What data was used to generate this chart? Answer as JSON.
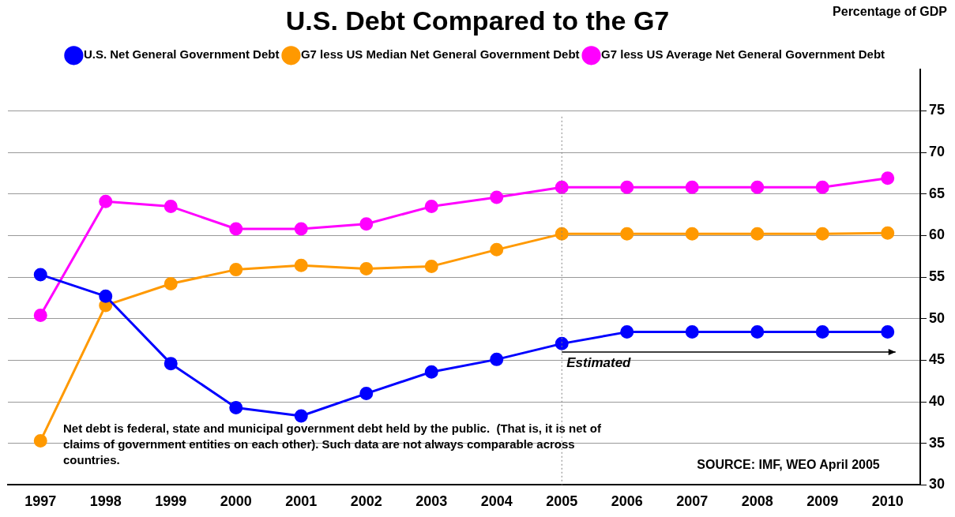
{
  "chart_data": {
    "type": "line",
    "title": "U.S. Debt Compared to the G7",
    "ylabel": "Percentage of GDP",
    "categories": [
      "1997",
      "1998",
      "1999",
      "2000",
      "2001",
      "2002",
      "2003",
      "2004",
      "2005",
      "2006",
      "2007",
      "2008",
      "2009",
      "2010"
    ],
    "series": [
      {
        "name": "U.S. Net General Government Debt",
        "color": "#0000ff",
        "values": [
          55.3,
          52.7,
          44.6,
          39.3,
          38.3,
          41.0,
          43.6,
          45.1,
          47.0,
          48.4,
          48.4,
          48.4,
          48.4,
          48.4
        ]
      },
      {
        "name": "G7 less US Median Net General Government Debt",
        "color": "#ff9900",
        "values": [
          35.3,
          51.6,
          54.2,
          55.9,
          56.4,
          56.0,
          56.3,
          58.3,
          60.2,
          60.2,
          60.2,
          60.2,
          60.2,
          60.3
        ]
      },
      {
        "name": "G7 less US Average Net General Government Debt",
        "color": "#ff00ff",
        "values": [
          50.4,
          64.1,
          63.5,
          60.8,
          60.8,
          61.4,
          63.5,
          64.6,
          65.8,
          65.8,
          65.8,
          65.8,
          65.8,
          66.9
        ]
      }
    ],
    "ylim": [
      30,
      80
    ],
    "yticks": [
      30,
      35,
      40,
      45,
      50,
      55,
      60,
      65,
      70,
      75
    ],
    "grid": "y",
    "legend": "top",
    "marker": "circle",
    "line_style": "solid",
    "ref_lines": [
      {
        "axis": "x",
        "value": "2005",
        "label": null,
        "color": "#808080",
        "line_style": "dotted"
      }
    ],
    "annotations": [
      {
        "text": "Estimated",
        "x": "2005",
        "y": 46
      },
      "Net debt is federal, state and municipal government debt held by the public.  (That is, it is net of claims of government entities on each other). Such data are not always comparable across countries.",
      "SOURCE: IMF, WEO April 2005"
    ]
  }
}
